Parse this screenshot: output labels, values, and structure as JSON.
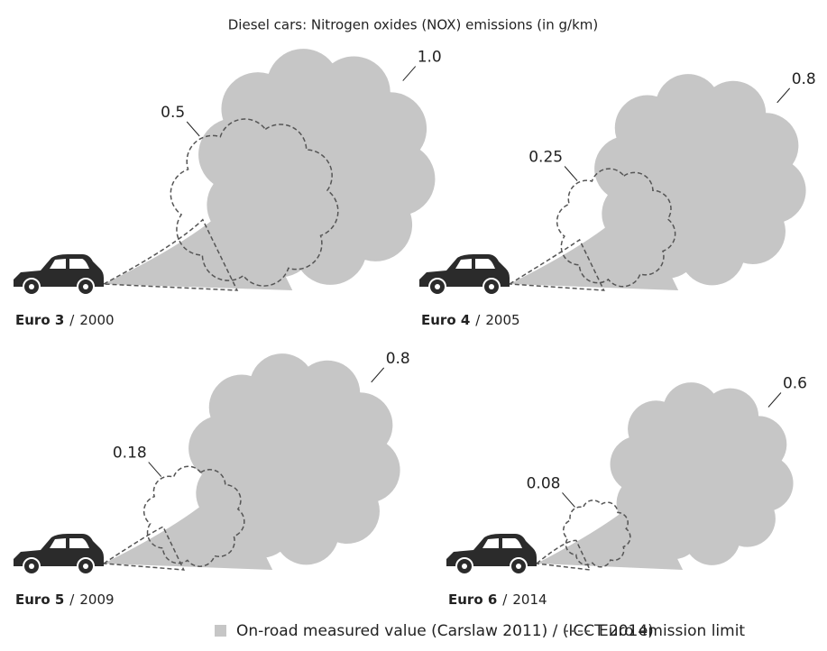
{
  "chart_data": {
    "type": "cloud",
    "title": "Diesel cars: Nitrogen oxides (NOX) emissions (in g/km)",
    "categories": [
      "Euro 3",
      "Euro 4",
      "Euro 5",
      "Euro 6"
    ],
    "years": [
      "2000",
      "2005",
      "2009",
      "2014"
    ],
    "separator": "/",
    "series": [
      {
        "name": "On-road measured value (Carslaw 2011) / (ICCT 2014)",
        "color": "#c6c6c6",
        "values": [
          1.0,
          0.8,
          0.8,
          0.6
        ],
        "value_labels": [
          "1.0",
          "0.8",
          "0.8",
          "0.6"
        ]
      },
      {
        "name": "Euro emission limit",
        "color": "#555555",
        "values": [
          0.5,
          0.25,
          0.18,
          0.08
        ]
      }
    ]
  }
}
